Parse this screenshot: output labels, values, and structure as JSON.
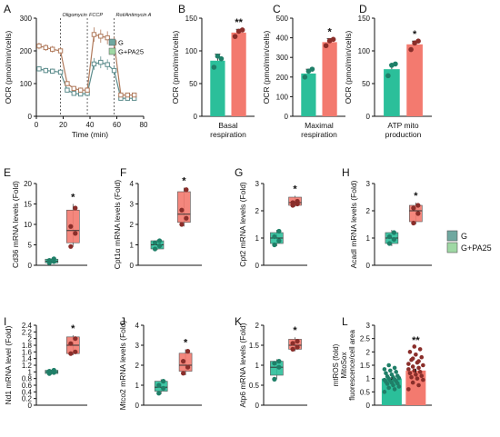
{
  "colors": {
    "g": "#2bbf9a",
    "pa": "#f37a6f",
    "g_dark": "#1f7f68",
    "pa_dark": "#8a2e2a",
    "axis": "#111111",
    "line_g": "#5d8d8d",
    "line_pa": "#b07a5c",
    "legend_g": "#6fa8a0",
    "legend_pa": "#9fd8a4"
  },
  "legend": {
    "g": "G",
    "pa": "G+PA25"
  },
  "chart_data": [
    {
      "id": "A",
      "type": "line",
      "letter": "A",
      "ylabel": "OCR (pmol/min/cells)",
      "xlabel": "Time (min)",
      "ylim": [
        0,
        300
      ],
      "yticks": [
        0,
        100,
        200,
        300
      ],
      "xlim": [
        0,
        80
      ],
      "xticks": [
        0,
        20,
        40,
        60,
        80
      ],
      "injections": [
        {
          "x": 18,
          "label": "Oligomycin"
        },
        {
          "x": 38,
          "label": "FCCP"
        },
        {
          "x": 58,
          "label": "Rot/Antimycin A"
        }
      ],
      "legend": [
        "G",
        "G+PA25"
      ],
      "x": [
        2,
        7,
        12,
        18,
        23,
        28,
        33,
        38,
        43,
        48,
        53,
        58,
        63,
        68,
        73
      ],
      "series": [
        {
          "name": "G",
          "color_key": "line_g",
          "values": [
            145,
            140,
            138,
            135,
            80,
            70,
            68,
            70,
            160,
            165,
            158,
            140,
            55,
            55,
            55
          ],
          "err": [
            8,
            8,
            8,
            8,
            6,
            6,
            6,
            6,
            18,
            18,
            16,
            14,
            5,
            5,
            5
          ]
        },
        {
          "name": "G+PA25",
          "color_key": "line_pa",
          "values": [
            215,
            210,
            205,
            200,
            100,
            85,
            80,
            80,
            250,
            245,
            240,
            225,
            65,
            65,
            65
          ],
          "err": [
            10,
            10,
            10,
            10,
            8,
            8,
            8,
            8,
            22,
            20,
            20,
            18,
            6,
            6,
            6
          ]
        }
      ]
    },
    {
      "id": "B",
      "type": "bar",
      "letter": "B",
      "ylabel": "OCR (pmol/min/cells)",
      "xlabel": [
        "Basal",
        "respiration"
      ],
      "ylim": [
        0,
        150
      ],
      "yticks": [
        0,
        50,
        100,
        150
      ],
      "values": [
        85,
        128
      ],
      "err": [
        10,
        5
      ],
      "points": [
        [
          75,
          92,
          88
        ],
        [
          122,
          130,
          132
        ]
      ],
      "sig": "**"
    },
    {
      "id": "C",
      "type": "bar",
      "letter": "C",
      "ylabel": "OCR (pmol/min/cells)",
      "xlabel": [
        "Maximal",
        "respiration"
      ],
      "ylim": [
        0,
        500
      ],
      "yticks": [
        0,
        100,
        200,
        300,
        400,
        500
      ],
      "values": [
        218,
        378
      ],
      "err": [
        22,
        18
      ],
      "points": [
        [
          200,
          230,
          240
        ],
        [
          360,
          385,
          392
        ]
      ],
      "sig": "*"
    },
    {
      "id": "D",
      "type": "bar",
      "letter": "D",
      "ylabel": "OCR (pmol/min/cells)",
      "xlabel": [
        "ATP mito",
        "production"
      ],
      "ylim": [
        0,
        150
      ],
      "yticks": [
        0,
        50,
        100,
        150
      ],
      "values": [
        72,
        110
      ],
      "err": [
        7,
        5
      ],
      "points": [
        [
          62,
          78,
          80
        ],
        [
          102,
          112,
          115
        ]
      ],
      "sig": "*"
    },
    {
      "id": "E",
      "type": "box",
      "letter": "E",
      "ylabel": "Cd36 mRNA levels (Fold)",
      "ylim": [
        0,
        20
      ],
      "yticks": [
        0,
        5,
        10,
        15,
        20
      ],
      "g": {
        "q1": 0.6,
        "med": 1.0,
        "q3": 1.5,
        "min": 0.5,
        "max": 1.7,
        "points": [
          0.6,
          0.9,
          1.2,
          1.6
        ]
      },
      "pa": {
        "q1": 5.5,
        "med": 8.5,
        "q3": 13.5,
        "min": 4.5,
        "max": 15,
        "points": [
          4.6,
          7.8,
          9.5,
          14
        ]
      },
      "sig": "*"
    },
    {
      "id": "F",
      "type": "box",
      "letter": "F",
      "ylabel": "Cpt1α mRNA levels (Fold)",
      "ylim": [
        0,
        4
      ],
      "yticks": [
        0,
        1,
        2,
        3,
        4
      ],
      "g": {
        "q1": 0.8,
        "med": 1.0,
        "q3": 1.2,
        "min": 0.75,
        "max": 1.25,
        "points": [
          0.8,
          0.95,
          1.1,
          1.2
        ]
      },
      "pa": {
        "q1": 2.1,
        "med": 2.5,
        "q3": 3.6,
        "min": 1.9,
        "max": 3.8,
        "points": [
          2.0,
          2.3,
          2.7,
          3.7
        ]
      },
      "sig": "*"
    },
    {
      "id": "G",
      "type": "box",
      "letter": "G",
      "ylabel": "Cpt2 mRNA levels (Fold)",
      "ylim": [
        0,
        3
      ],
      "yticks": [
        0,
        1,
        2,
        3
      ],
      "g": {
        "q1": 0.8,
        "med": 1.0,
        "q3": 1.2,
        "min": 0.7,
        "max": 1.3,
        "points": [
          0.75,
          0.9,
          1.05,
          1.25
        ]
      },
      "pa": {
        "q1": 2.2,
        "med": 2.3,
        "q3": 2.5,
        "min": 2.15,
        "max": 2.55,
        "points": [
          2.2,
          2.25,
          2.3,
          2.35
        ]
      },
      "sig": "*"
    },
    {
      "id": "H",
      "type": "box",
      "letter": "H",
      "ylabel": "Acadl mRNA levels (Fold)",
      "ylim": [
        0,
        3
      ],
      "yticks": [
        0,
        1,
        2,
        3
      ],
      "g": {
        "q1": 0.8,
        "med": 1.0,
        "q3": 1.2,
        "min": 0.7,
        "max": 1.3,
        "points": [
          0.8,
          0.95,
          1.05,
          1.2
        ]
      },
      "pa": {
        "q1": 1.6,
        "med": 2.0,
        "q3": 2.2,
        "min": 1.5,
        "max": 2.3,
        "points": [
          1.55,
          1.9,
          2.1,
          2.2
        ]
      },
      "sig": "*"
    },
    {
      "id": "I",
      "type": "box",
      "letter": "I",
      "ylabel": "Nd1 mRNA level (Fold)",
      "ylim": [
        0,
        2.4
      ],
      "yticks": [
        0,
        0.2,
        0.4,
        0.6,
        0.8,
        1.0,
        1.2,
        1.4,
        1.6,
        1.8,
        2.0,
        2.2,
        2.4
      ],
      "g": {
        "q1": 0.95,
        "med": 1.0,
        "q3": 1.05,
        "min": 0.92,
        "max": 1.07,
        "points": [
          0.95,
          0.98,
          1.02,
          1.05
        ]
      },
      "pa": {
        "q1": 1.55,
        "med": 1.8,
        "q3": 2.05,
        "min": 1.5,
        "max": 2.1,
        "points": [
          1.55,
          1.6,
          1.85,
          2.0
        ]
      },
      "sig": "*"
    },
    {
      "id": "J",
      "type": "box",
      "letter": "J",
      "ylabel": "Mtco2 mRNA levels (Fold)",
      "ylim": [
        0,
        4
      ],
      "yticks": [
        0,
        1,
        2,
        3,
        4
      ],
      "g": {
        "q1": 0.7,
        "med": 0.9,
        "q3": 1.2,
        "min": 0.55,
        "max": 1.3,
        "points": [
          0.6,
          0.85,
          1.0,
          1.2
        ]
      },
      "pa": {
        "q1": 1.7,
        "med": 2.0,
        "q3": 2.6,
        "min": 1.5,
        "max": 2.8,
        "points": [
          1.6,
          1.9,
          2.2,
          2.7
        ]
      },
      "sig": "*"
    },
    {
      "id": "K",
      "type": "box",
      "letter": "K",
      "ylabel": "Atp6 mRNA levels (Fold)",
      "ylim": [
        0,
        2
      ],
      "yticks": [
        0,
        0.5,
        1.0,
        1.5,
        2.0
      ],
      "g": {
        "q1": 0.75,
        "med": 0.95,
        "q3": 1.1,
        "min": 0.65,
        "max": 1.15,
        "points": [
          0.65,
          0.95,
          1.05,
          1.1
        ]
      },
      "pa": {
        "q1": 1.4,
        "med": 1.5,
        "q3": 1.65,
        "min": 1.35,
        "max": 1.7,
        "points": [
          1.4,
          1.45,
          1.55,
          1.6
        ]
      },
      "sig": "*"
    },
    {
      "id": "L",
      "type": "dotbar",
      "letter": "L",
      "ylabel": [
        "mtROS (fold)",
        "MitoSox",
        "fluorescence/cell area"
      ],
      "ylim": [
        0,
        3.0
      ],
      "yticks": [
        0,
        0.5,
        1.0,
        1.5,
        2.0,
        2.5,
        3.0
      ],
      "values": [
        1.0,
        1.3
      ],
      "err": [
        0.05,
        0.07
      ],
      "g_points": [
        0.5,
        0.6,
        0.65,
        0.7,
        0.75,
        0.8,
        0.82,
        0.85,
        0.88,
        0.9,
        0.92,
        0.95,
        0.97,
        1.0,
        1.02,
        1.05,
        1.08,
        1.1,
        1.15,
        1.2,
        1.25,
        1.3,
        1.35,
        1.4,
        1.5
      ],
      "pa_points": [
        0.6,
        0.75,
        0.85,
        0.95,
        1.0,
        1.05,
        1.1,
        1.15,
        1.2,
        1.25,
        1.3,
        1.35,
        1.4,
        1.45,
        1.5,
        1.6,
        1.7,
        1.8,
        1.9,
        2.0,
        2.1,
        2.2,
        1.55,
        1.65,
        1.75
      ],
      "sig": "**"
    }
  ]
}
